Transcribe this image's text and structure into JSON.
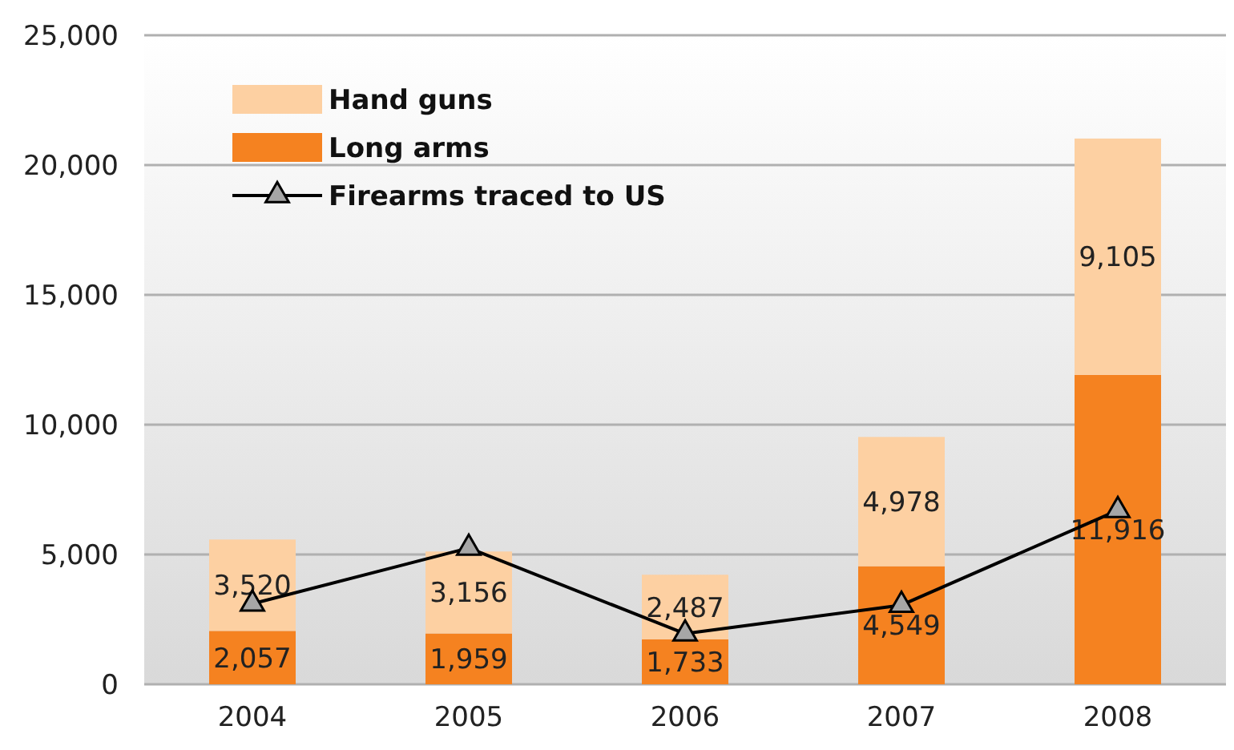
{
  "chart_data": {
    "type": "bar",
    "stacked": true,
    "categories": [
      "2004",
      "2005",
      "2006",
      "2007",
      "2008"
    ],
    "series": [
      {
        "name": "Long arms",
        "color": "#f58220",
        "values": [
          2057,
          1959,
          1733,
          4549,
          11916
        ],
        "value_labels": [
          "2,057",
          "1,959",
          "1,733",
          "4,549",
          "11,916"
        ]
      },
      {
        "name": "Hand guns",
        "color": "#fdd0a2",
        "values": [
          3520,
          3156,
          2487,
          4978,
          9105
        ],
        "value_labels": [
          "3,520",
          "3,156",
          "2,487",
          "4,978",
          "9,105"
        ]
      },
      {
        "name": "Firearms traced to US",
        "type": "line",
        "color": "#000000",
        "marker": "triangle",
        "values": [
          3100,
          5250,
          1950,
          3050,
          6700
        ]
      }
    ],
    "ylim": [
      0,
      25000
    ],
    "yticks": [
      {
        "value": 0,
        "label": "0"
      },
      {
        "value": 5000,
        "label": "5,000"
      },
      {
        "value": 10000,
        "label": "10,000"
      },
      {
        "value": 15000,
        "label": "15,000"
      },
      {
        "value": 20000,
        "label": "20,000"
      },
      {
        "value": 25000,
        "label": "25,000"
      }
    ],
    "grid": "y",
    "legend": "top left"
  }
}
